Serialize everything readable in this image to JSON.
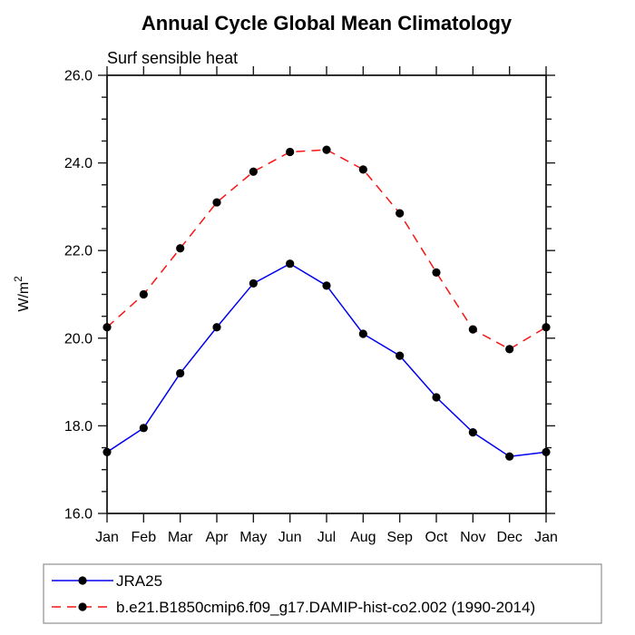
{
  "title": "Annual Cycle Global Mean Climatology",
  "subtitle": "Surf sensible heat",
  "chart_data": {
    "type": "line",
    "title": "Annual Cycle Global Mean Climatology",
    "subtitle": "Surf sensible heat",
    "xlabel": "",
    "ylabel": "W/m²",
    "categories": [
      "Jan",
      "Feb",
      "Mar",
      "Apr",
      "May",
      "Jun",
      "Jul",
      "Aug",
      "Sep",
      "Oct",
      "Nov",
      "Dec",
      "Jan"
    ],
    "ylim": [
      16.0,
      26.0
    ],
    "ytick_step": 2.0,
    "ytick_labels": [
      "16.0",
      "18.0",
      "20.0",
      "22.0",
      "24.0",
      "26.0"
    ],
    "minor_tick_step": 0.5,
    "grid": false,
    "tick_style": "outward, mirrored on top and right axes",
    "legend_position": "bottom-left box",
    "axis_color": "#1a1a1a",
    "series": [
      {
        "name": "JRA25",
        "color": "#0000ee",
        "line_style": "solid",
        "marker": "filled-circle",
        "marker_color": "#000000",
        "values": [
          17.4,
          17.95,
          19.2,
          20.25,
          21.25,
          21.7,
          21.2,
          20.1,
          19.6,
          18.65,
          17.85,
          17.3,
          17.4
        ]
      },
      {
        "name": "b.e21.B1850cmip6.f09_g17.DAMIP-hist-co2.002 (1990-2014)",
        "color": "#f81414",
        "line_style": "dashed",
        "marker": "filled-circle",
        "marker_color": "#000000",
        "values": [
          20.25,
          21.0,
          22.05,
          23.1,
          23.8,
          24.25,
          24.3,
          23.85,
          22.85,
          21.5,
          20.2,
          19.75,
          20.25
        ]
      }
    ]
  }
}
